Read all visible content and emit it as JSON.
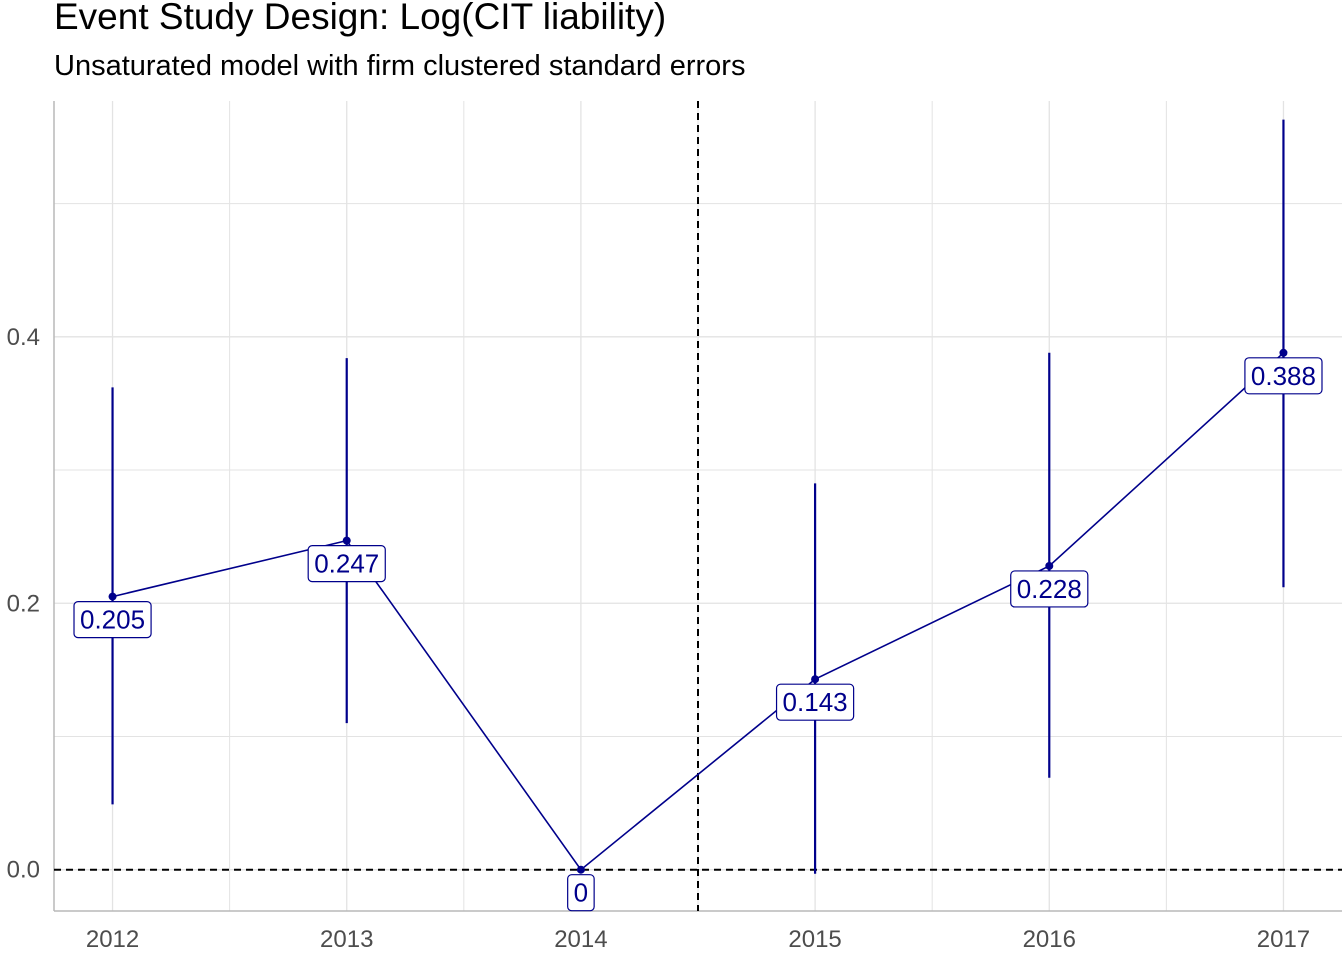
{
  "title": "Event Study Design: Log(CIT liability)",
  "subtitle": "Unsaturated model with firm clustered standard errors",
  "colors": {
    "series": "#00008B",
    "grid": "#e3e3e3",
    "reference": "#000000",
    "axis_text": "#4d4d4d"
  },
  "chart_data": {
    "type": "line",
    "title": "Event Study Design: Log(CIT liability)",
    "subtitle": "Unsaturated model with firm clustered standard errors",
    "xlabel": "",
    "ylabel": "",
    "x": [
      2012,
      2013,
      2014,
      2015,
      2016,
      2017
    ],
    "x_tick_labels": [
      "2012",
      "2013",
      "2014",
      "2015",
      "2016",
      "2017"
    ],
    "y_tick_labels": [
      "0.0",
      "0.2",
      "0.4"
    ],
    "y_ticks": [
      0.0,
      0.2,
      0.4
    ],
    "xlim": [
      2011.75,
      2017.25
    ],
    "ylim": [
      -0.031,
      0.577
    ],
    "series": [
      {
        "values": [
          0.205,
          0.247,
          0,
          0.143,
          0.228,
          0.388
        ],
        "ci_lower": [
          0.049,
          0.11,
          0,
          -0.003,
          0.069,
          0.212
        ],
        "ci_upper": [
          0.362,
          0.384,
          0,
          0.29,
          0.388,
          0.563
        ],
        "labels": [
          "0.205",
          "0.247",
          "0",
          "0.143",
          "0.228",
          "0.388"
        ]
      }
    ],
    "reference_lines": {
      "vertical_x": 2014.5,
      "horizontal_y": 0
    },
    "grid": true,
    "legend": "none"
  }
}
